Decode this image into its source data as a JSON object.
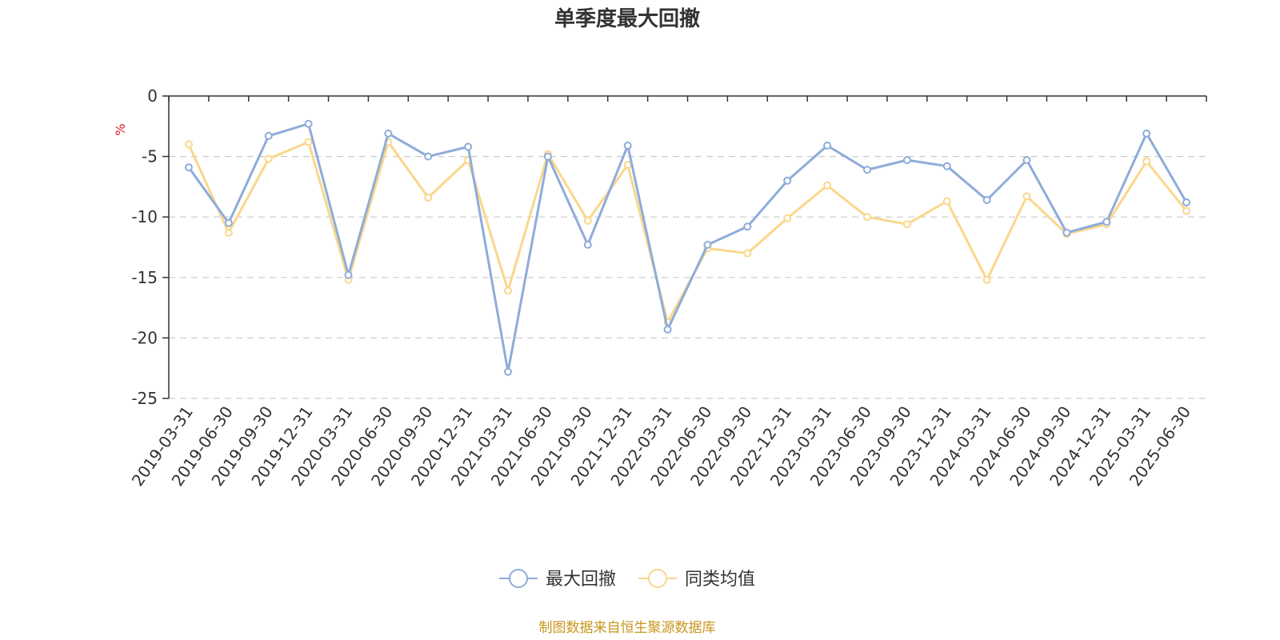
{
  "chart_data": {
    "type": "line",
    "title": "单季度最大回撤",
    "ylabel": "%",
    "ylim": [
      -25,
      0
    ],
    "yticks": [
      0,
      -5,
      -10,
      -15,
      -20,
      -25
    ],
    "grid": true,
    "legend_position": "bottom-center",
    "categories": [
      "2019-03-31",
      "2019-06-30",
      "2019-09-30",
      "2019-12-31",
      "2020-03-31",
      "2020-06-30",
      "2020-09-30",
      "2020-12-31",
      "2021-03-31",
      "2021-06-30",
      "2021-09-30",
      "2021-12-31",
      "2022-03-31",
      "2022-06-30",
      "2022-09-30",
      "2022-12-31",
      "2023-03-31",
      "2023-06-30",
      "2023-09-30",
      "2023-12-31",
      "2024-03-31",
      "2024-06-30",
      "2024-09-30",
      "2024-12-31",
      "2025-03-31",
      "2025-06-30"
    ],
    "series": [
      {
        "name": "最大回撤",
        "color": "#8eacd9",
        "values": [
          -5.9,
          -10.5,
          -3.3,
          -2.3,
          -14.8,
          -3.1,
          -5.0,
          -4.2,
          -22.8,
          -5.0,
          -12.3,
          -4.1,
          -19.3,
          -12.3,
          -10.8,
          -7.0,
          -4.1,
          -6.1,
          -5.3,
          -5.8,
          -8.6,
          -5.3,
          -11.3,
          -10.4,
          -3.1,
          -8.8
        ]
      },
      {
        "name": "同类均值",
        "color": "#fad78c",
        "values": [
          -4.0,
          -11.3,
          -5.2,
          -3.8,
          -15.2,
          -3.8,
          -8.4,
          -5.3,
          -16.1,
          -4.8,
          -10.3,
          -5.7,
          -18.7,
          -12.6,
          -13.0,
          -10.1,
          -7.4,
          -10.0,
          -10.6,
          -8.7,
          -15.2,
          -8.3,
          -11.4,
          -10.6,
          -5.4,
          -9.5
        ]
      }
    ],
    "source_note": "制图数据来自恒生聚源数据库",
    "source_color": "#c8961e",
    "unit_color": "#e02020"
  }
}
